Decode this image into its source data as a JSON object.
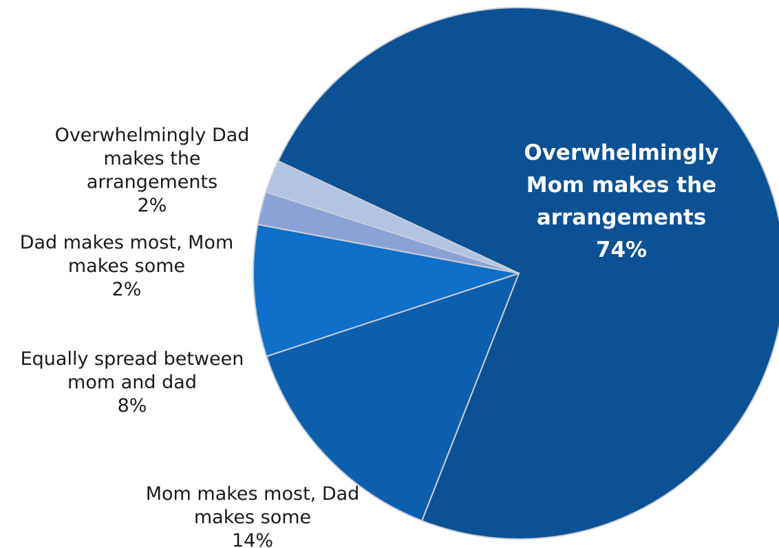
{
  "chart_data": {
    "type": "pie",
    "title": "",
    "slices": [
      {
        "label": "Overwhelmingly Mom makes the arrangements",
        "label_lines": [
          "Overwhelmingly",
          "Mom makes the",
          "arrangements"
        ],
        "value": 74,
        "value_text": "74%",
        "color": "#0b5195",
        "label_position": "inside"
      },
      {
        "label": "Mom makes most, Dad makes some",
        "label_lines": [
          "Mom makes most, Dad",
          "makes some"
        ],
        "value": 14,
        "value_text": "14%",
        "color": "#0c5fad",
        "label_position": "outside"
      },
      {
        "label": "Equally spread between mom and dad",
        "label_lines": [
          "Equally spread between",
          "mom and dad"
        ],
        "value": 8,
        "value_text": "8%",
        "color": "#0f6fc9",
        "label_position": "outside"
      },
      {
        "label": "Dad makes most, Mom makes some",
        "label_lines": [
          "Dad makes most, Mom",
          "makes some"
        ],
        "value": 2,
        "value_text": "2%",
        "color": "#8aa2d6",
        "label_position": "outside"
      },
      {
        "label": "Overwhelmingly Dad makes the arrangements",
        "label_lines": [
          "Overwhelmingly Dad",
          "makes the",
          "arrangements"
        ],
        "value": 2,
        "value_text": "2%",
        "color": "#b3c3e2",
        "label_position": "outside"
      }
    ]
  }
}
